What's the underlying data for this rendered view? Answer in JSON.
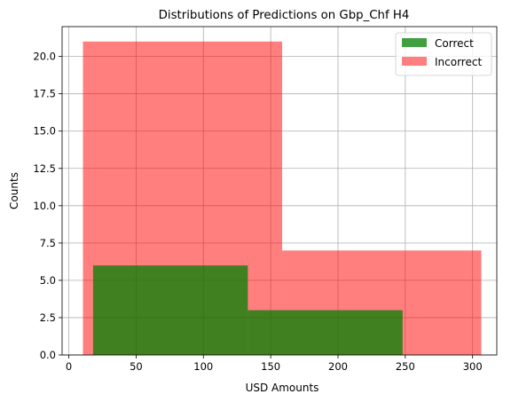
{
  "chart_data": {
    "type": "histogram",
    "title": "Distributions of Predictions on Gbp_Chf H4",
    "xlabel": "USD Amounts",
    "ylabel": "Counts",
    "xlim": [
      -5,
      318
    ],
    "ylim": [
      0,
      22
    ],
    "xticks": [
      0,
      50,
      100,
      150,
      200,
      250,
      300
    ],
    "yticks": [
      0.0,
      2.5,
      5.0,
      7.5,
      10.0,
      12.5,
      15.0,
      17.5,
      20.0
    ],
    "grid": true,
    "legend_position": "top-right",
    "series": [
      {
        "name": "Incorrect",
        "color": "#ff0000",
        "alpha": 0.5,
        "bins": [
          {
            "x0": 10.5,
            "x1": 158.5,
            "count": 21
          },
          {
            "x0": 158.5,
            "x1": 306.5,
            "count": 7
          }
        ]
      },
      {
        "name": "Correct",
        "color": "#008000",
        "alpha": 0.75,
        "bins": [
          {
            "x0": 18,
            "x1": 133,
            "count": 6
          },
          {
            "x0": 133,
            "x1": 248,
            "count": 3
          }
        ]
      }
    ],
    "legend": [
      {
        "name": "Correct",
        "color": "#008000",
        "alpha": 0.75
      },
      {
        "name": "Incorrect",
        "color": "#ff0000",
        "alpha": 0.5
      }
    ]
  }
}
